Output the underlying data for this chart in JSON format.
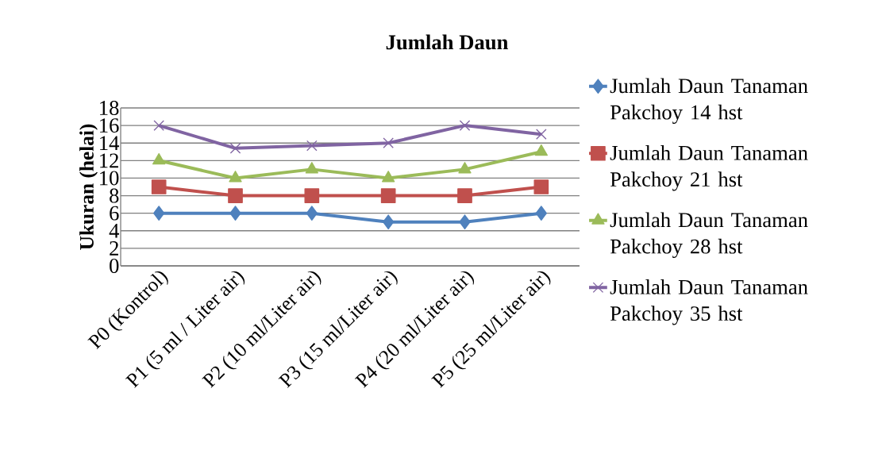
{
  "chart_data": {
    "type": "line",
    "title": "Jumlah Daun",
    "ylabel": "Ukuran (helai)",
    "categories": [
      "P0  (Kontrol)",
      "P1 (5 ml / Liter air)",
      "P2 (10 ml/Liter air)",
      "P3 (15 ml/Liter air)",
      "P4 (20 ml/Liter air)",
      "P5 (25 ml/Liter air)"
    ],
    "series": [
      {
        "name": "Jumlah Daun Tanaman Pakchoy 14 hst",
        "color": "#4f81bd",
        "marker": "diamond",
        "values": [
          6,
          6,
          6,
          5,
          5,
          6
        ]
      },
      {
        "name": "Jumlah Daun Tanaman Pakchoy 21 hst",
        "color": "#c0504d",
        "marker": "square",
        "values": [
          9,
          8,
          8,
          8,
          8,
          9
        ]
      },
      {
        "name": "Jumlah Daun Tanaman Pakchoy 28 hst",
        "color": "#9bbb59",
        "marker": "triangle",
        "values": [
          12,
          10,
          11,
          10,
          11,
          13
        ]
      },
      {
        "name": "Jumlah Daun Tanaman Pakchoy 35 hst",
        "color": "#8064a2",
        "marker": "cross",
        "values": [
          16,
          13.4,
          13.7,
          14,
          16,
          15
        ]
      }
    ],
    "ylim": [
      0,
      18
    ],
    "yticks": [
      0,
      2,
      4,
      6,
      8,
      10,
      12,
      14,
      16,
      18
    ],
    "grid": "y",
    "legend": "right",
    "line_style": "solid"
  }
}
